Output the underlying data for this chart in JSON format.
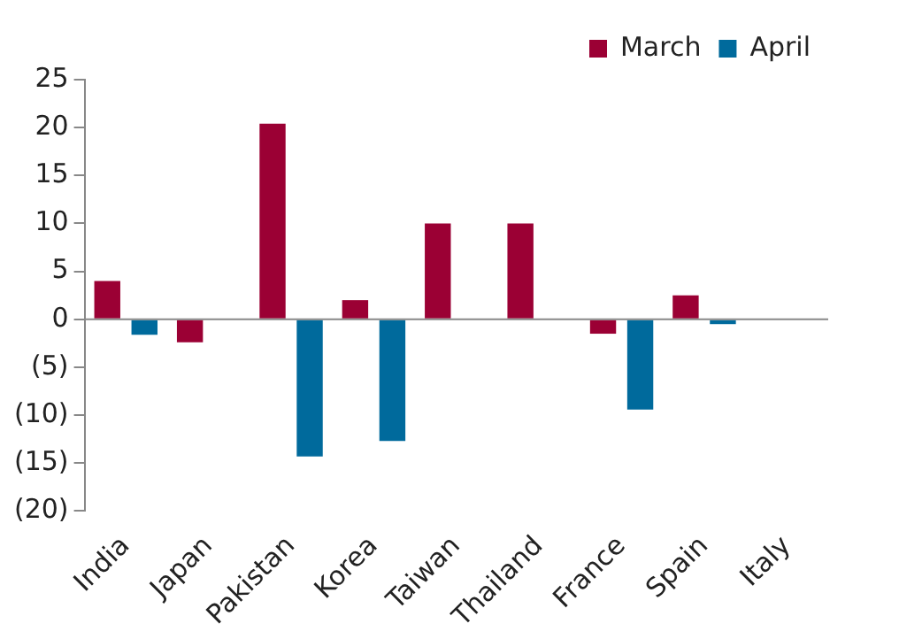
{
  "chart_data": {
    "type": "bar",
    "categories": [
      "India",
      "Japan",
      "Pakistan",
      "Korea",
      "Taiwan",
      "Thailand",
      "France",
      "Spain",
      "Italy"
    ],
    "series": [
      {
        "name": "March",
        "color": "#9b0034",
        "values": [
          4.0,
          -2.4,
          20.4,
          2.0,
          10.0,
          10.0,
          -1.5,
          2.5,
          0
        ]
      },
      {
        "name": "April",
        "color": "#006a9c",
        "values": [
          -1.6,
          0,
          -14.3,
          -12.7,
          0,
          0,
          -9.4,
          -0.5,
          0
        ]
      }
    ],
    "ylim": [
      -20,
      25
    ],
    "yticks": [
      {
        "value": -20,
        "label": "(20)"
      },
      {
        "value": -15,
        "label": "(15)"
      },
      {
        "value": -10,
        "label": "(10)"
      },
      {
        "value": -5,
        "label": "(5)"
      },
      0,
      5,
      10,
      15,
      20,
      25
    ],
    "ref_lines": [
      {
        "axis": "y",
        "value": 0,
        "color": "#888888"
      }
    ],
    "grid": false,
    "legend": "top right"
  }
}
